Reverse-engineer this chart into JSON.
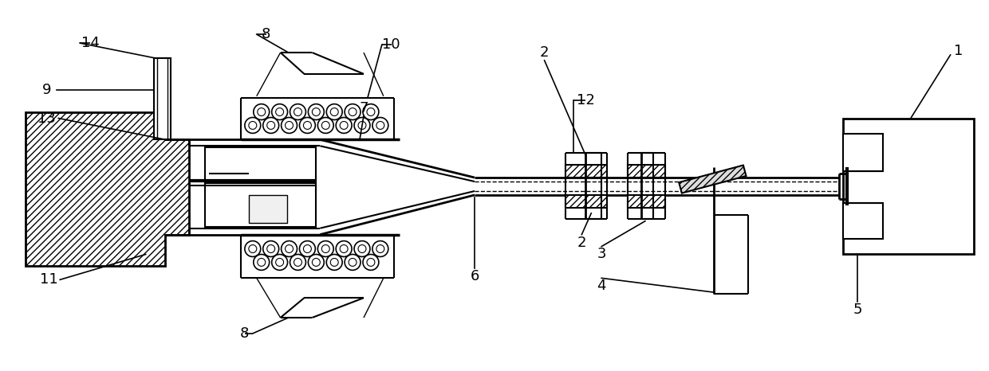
{
  "bg_color": "#ffffff",
  "line_color": "#000000",
  "figsize": [
    12.4,
    4.66
  ],
  "dpi": 100
}
